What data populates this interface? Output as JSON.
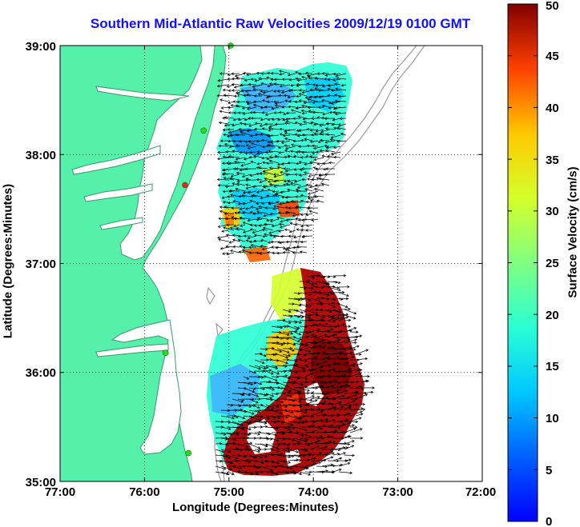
{
  "title": "Southern Mid-Atlantic Raw Velocities 2009/12/19 0100 GMT",
  "x_axis": {
    "label": "Longitude (Degrees:Minutes)",
    "ticks": [
      "77:00",
      "76:00",
      "75:00",
      "74:00",
      "73:00",
      "72:00"
    ]
  },
  "y_axis": {
    "label": "Latitude (Degrees:Minutes)",
    "ticks": [
      "39:00",
      "38:00",
      "37:00",
      "36:00",
      "35:00"
    ]
  },
  "colorbar": {
    "label": "Surface Velocity (cm/s)",
    "ticks": [
      "0",
      "5",
      "10",
      "15",
      "20",
      "25",
      "30",
      "35",
      "40",
      "45",
      "50"
    ],
    "range": [
      0,
      50
    ],
    "colormap": "jet"
  },
  "map_extent": {
    "lon": [
      -77,
      -72
    ],
    "lat": [
      35,
      39
    ]
  },
  "colors": {
    "title": "#1010ff",
    "land": "#55f0aa",
    "bathymetry": "#9a9a9a",
    "grid": "#000000",
    "station_active": "#22dd22",
    "station_flagged": "#ee2222"
  },
  "stations": [
    {
      "lon": -74.98,
      "lat": 39.0,
      "status": "active"
    },
    {
      "lon": -75.3,
      "lat": 38.22,
      "status": "active"
    },
    {
      "lon": -75.52,
      "lat": 37.72,
      "status": "flagged"
    },
    {
      "lon": -75.75,
      "lat": 36.18,
      "status": "active"
    },
    {
      "lon": -75.48,
      "lat": 35.26,
      "status": "active"
    }
  ]
}
